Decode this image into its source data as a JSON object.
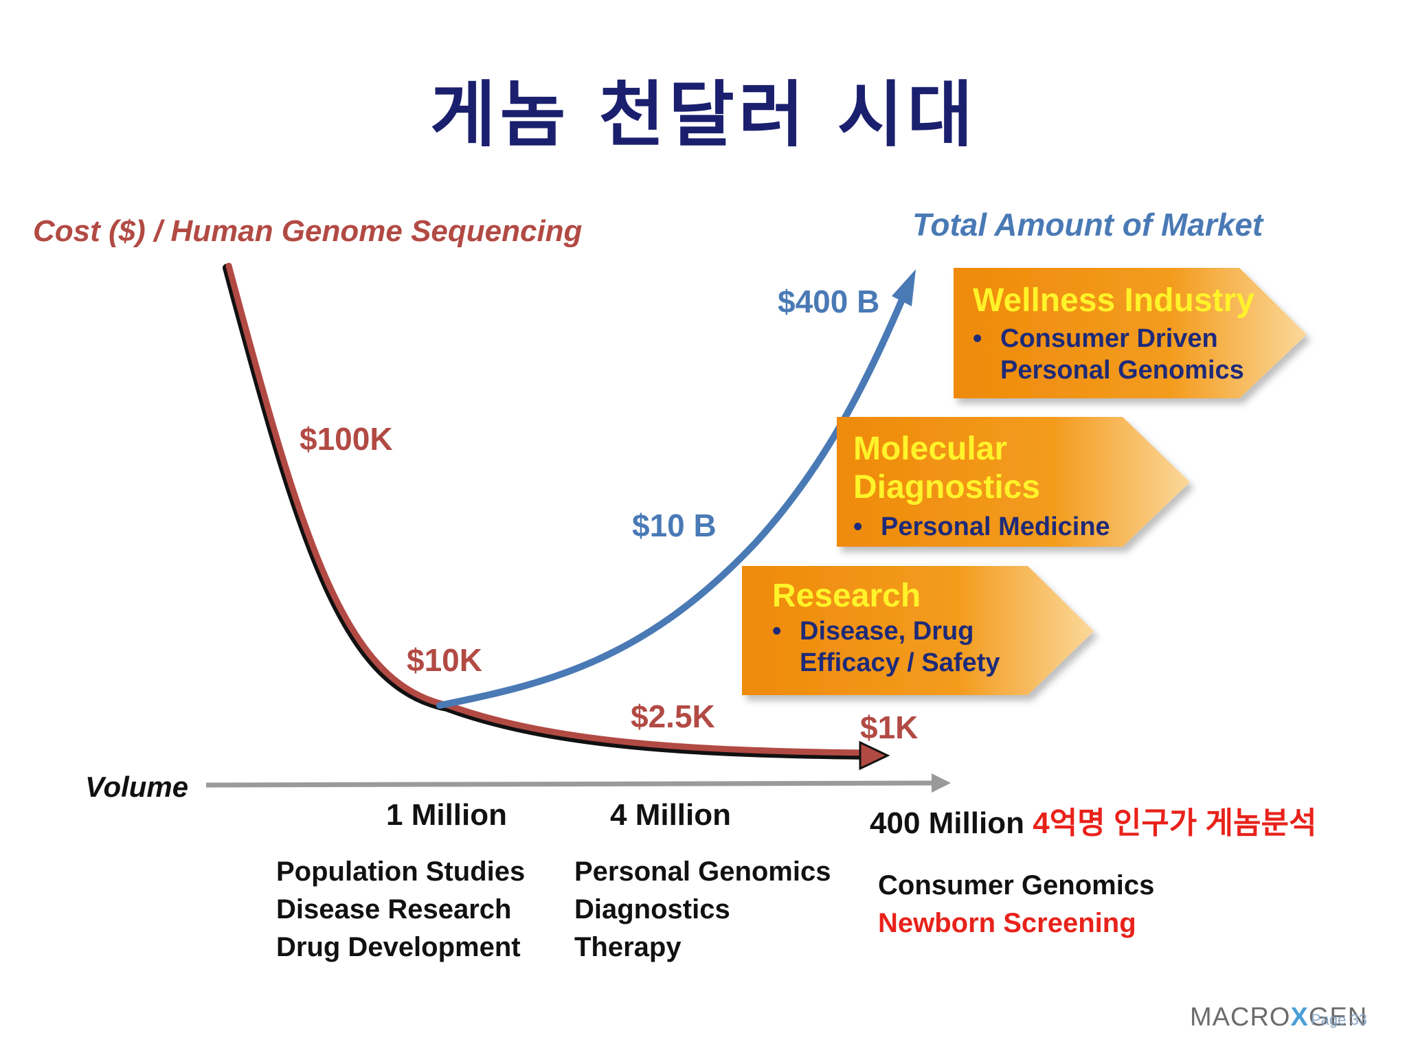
{
  "title": "게놈 천달러 시대",
  "cost_axis_label": "Cost ($) / Human Genome Sequencing",
  "market_axis_label": "Total Amount of Market",
  "volume_axis_label": "Volume",
  "cost_points": [
    "$100K",
    "$10K",
    "$2.5K",
    "$1K"
  ],
  "market_points": [
    "$10 B",
    "$400 B"
  ],
  "volume_points": [
    {
      "value": "1 Million",
      "note": ""
    },
    {
      "value": "4 Million",
      "note": ""
    },
    {
      "value": "400 Million",
      "note": "4억명 인구가 게놈분석"
    }
  ],
  "applications": [
    {
      "lines": [
        "Population Studies",
        "Disease Research",
        "Drug Development"
      ]
    },
    {
      "lines": [
        "Personal Genomics",
        "Diagnostics",
        "Therapy"
      ]
    },
    {
      "lines": [
        "Consumer Genomics"
      ],
      "highlight": "Newborn Screening"
    }
  ],
  "markets": [
    {
      "name": "Research",
      "bullets": [
        "Disease, Drug Efficacy / Safety"
      ]
    },
    {
      "name": "Molecular Diagnostics",
      "bullets": [
        "Personal Medicine"
      ]
    },
    {
      "name": "Wellness Industry",
      "bullets": [
        "Consumer Driven Personal Genomics"
      ]
    }
  ],
  "colors": {
    "title": "#1a1f6e",
    "cost_curve": "#b24a44",
    "market_curve": "#4a7ab5",
    "box_fill": "#f08c0a",
    "box_heading": "#fff32a",
    "box_bullet": "#1e2a78",
    "highlight_red": "#e8221b",
    "axis_gray": "#9a9a9a"
  },
  "logo": {
    "text_left": "MACRO",
    "text_mid": "X",
    "text_right": "GEN",
    "page": "Page 33"
  }
}
